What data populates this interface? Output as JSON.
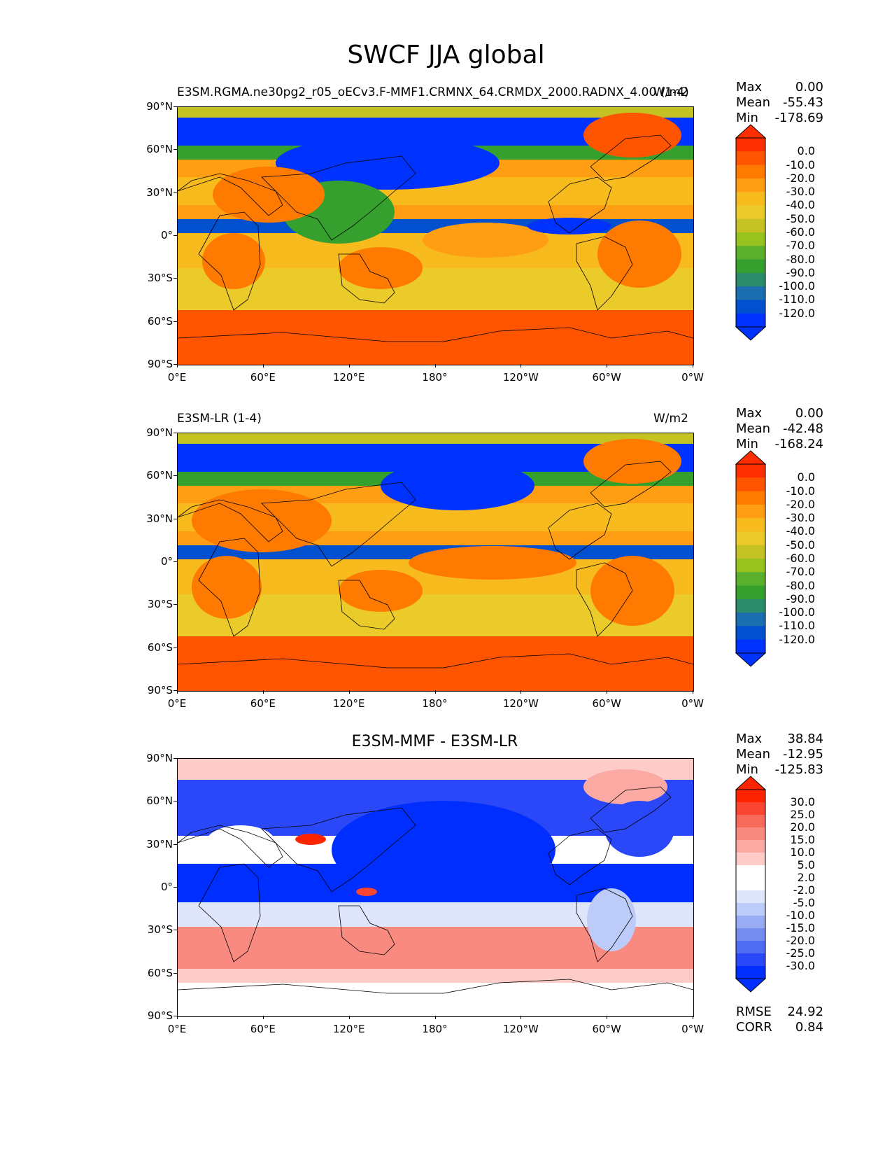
{
  "title": "SWCF JJA global",
  "x_ticks": [
    "0°E",
    "60°E",
    "120°E",
    "180°",
    "120°W",
    "60°W",
    "0°W"
  ],
  "y_ticks": [
    "90°N",
    "60°N",
    "30°N",
    "0°",
    "30°S",
    "60°S",
    "90°S"
  ],
  "panels": [
    {
      "left_label": "E3SM.RGMA.ne30pg2_r05_oECv3.F-MMF1.CRMNX_64.CRMDX_2000.RADNX_4.00 (1-4)",
      "center_label": "",
      "right_label": "W/m2",
      "stats": [
        {
          "label": "Max",
          "value": "0.00"
        },
        {
          "label": "Mean",
          "value": "-55.43"
        },
        {
          "label": "Min",
          "value": "-178.69"
        }
      ],
      "colorbar_labels": [
        "0.0",
        "-10.0",
        "-20.0",
        "-30.0",
        "-40.0",
        "-50.0",
        "-60.0",
        "-70.0",
        "-80.0",
        "-90.0",
        "-100.0",
        "-110.0",
        "-120.0"
      ]
    },
    {
      "left_label": "E3SM-LR (1-4)",
      "center_label": "",
      "right_label": "W/m2",
      "stats": [
        {
          "label": "Max",
          "value": "0.00"
        },
        {
          "label": "Mean",
          "value": "-42.48"
        },
        {
          "label": "Min",
          "value": "-168.24"
        }
      ],
      "colorbar_labels": [
        "0.0",
        "-10.0",
        "-20.0",
        "-30.0",
        "-40.0",
        "-50.0",
        "-60.0",
        "-70.0",
        "-80.0",
        "-90.0",
        "-100.0",
        "-110.0",
        "-120.0"
      ]
    },
    {
      "left_label": "",
      "center_label": "E3SM-MMF - E3SM-LR",
      "right_label": "",
      "stats": [
        {
          "label": "Max",
          "value": "38.84"
        },
        {
          "label": "Mean",
          "value": "-12.95"
        },
        {
          "label": "Min",
          "value": "-125.83"
        }
      ],
      "colorbar_labels": [
        "30.0",
        "25.0",
        "20.0",
        "15.0",
        "10.0",
        "5.0",
        "2.0",
        "-2.0",
        "-5.0",
        "-10.0",
        "-15.0",
        "-20.0",
        "-25.0",
        "-30.0"
      ],
      "extra_stats": [
        {
          "label": "RMSE",
          "value": "24.92"
        },
        {
          "label": "CORR",
          "value": "0.84"
        }
      ]
    }
  ],
  "colors": {
    "swcf_scale": [
      "#ff2e00",
      "#ff5500",
      "#ff7a00",
      "#ff9e12",
      "#f7bb1e",
      "#ebcb2a",
      "#c4c224",
      "#98c21e",
      "#5ab02c",
      "#36a02f",
      "#2a8c6a",
      "#1b6fb0",
      "#0050d0",
      "#0032ff"
    ],
    "diff_scale": [
      "#ff2400",
      "#f94531",
      "#f7695b",
      "#f88a80",
      "#fbaaa3",
      "#fdccc8",
      "#ffffff",
      "#ffffff",
      "#dfe6fc",
      "#bdcbf8",
      "#99acf3",
      "#758df0",
      "#4f6cf2",
      "#2a48f7",
      "#002eff"
    ]
  },
  "chart_data": [
    {
      "type": "heatmap",
      "title": "E3SM.RGMA.ne30pg2_r05_oECv3.F-MMF1.CRMNX_64.CRMDX_2000.RADNX_4.00 (1-4)",
      "units": "W/m2",
      "xlim": [
        0,
        360
      ],
      "ylim": [
        -90,
        90
      ],
      "levels": [
        0,
        -10,
        -20,
        -30,
        -40,
        -50,
        -60,
        -70,
        -80,
        -90,
        -100,
        -110,
        -120
      ],
      "max": 0.0,
      "mean": -55.43,
      "min": -178.69
    },
    {
      "type": "heatmap",
      "title": "E3SM-LR (1-4)",
      "units": "W/m2",
      "xlim": [
        0,
        360
      ],
      "ylim": [
        -90,
        90
      ],
      "levels": [
        0,
        -10,
        -20,
        -30,
        -40,
        -50,
        -60,
        -70,
        -80,
        -90,
        -100,
        -110,
        -120
      ],
      "max": 0.0,
      "mean": -42.48,
      "min": -168.24
    },
    {
      "type": "heatmap",
      "title": "E3SM-MMF - E3SM-LR",
      "xlim": [
        0,
        360
      ],
      "ylim": [
        -90,
        90
      ],
      "levels": [
        30,
        25,
        20,
        15,
        10,
        5,
        2,
        -2,
        -5,
        -10,
        -15,
        -20,
        -25,
        -30
      ],
      "max": 38.84,
      "mean": -12.95,
      "min": -125.83,
      "rmse": 24.92,
      "corr": 0.84
    }
  ]
}
